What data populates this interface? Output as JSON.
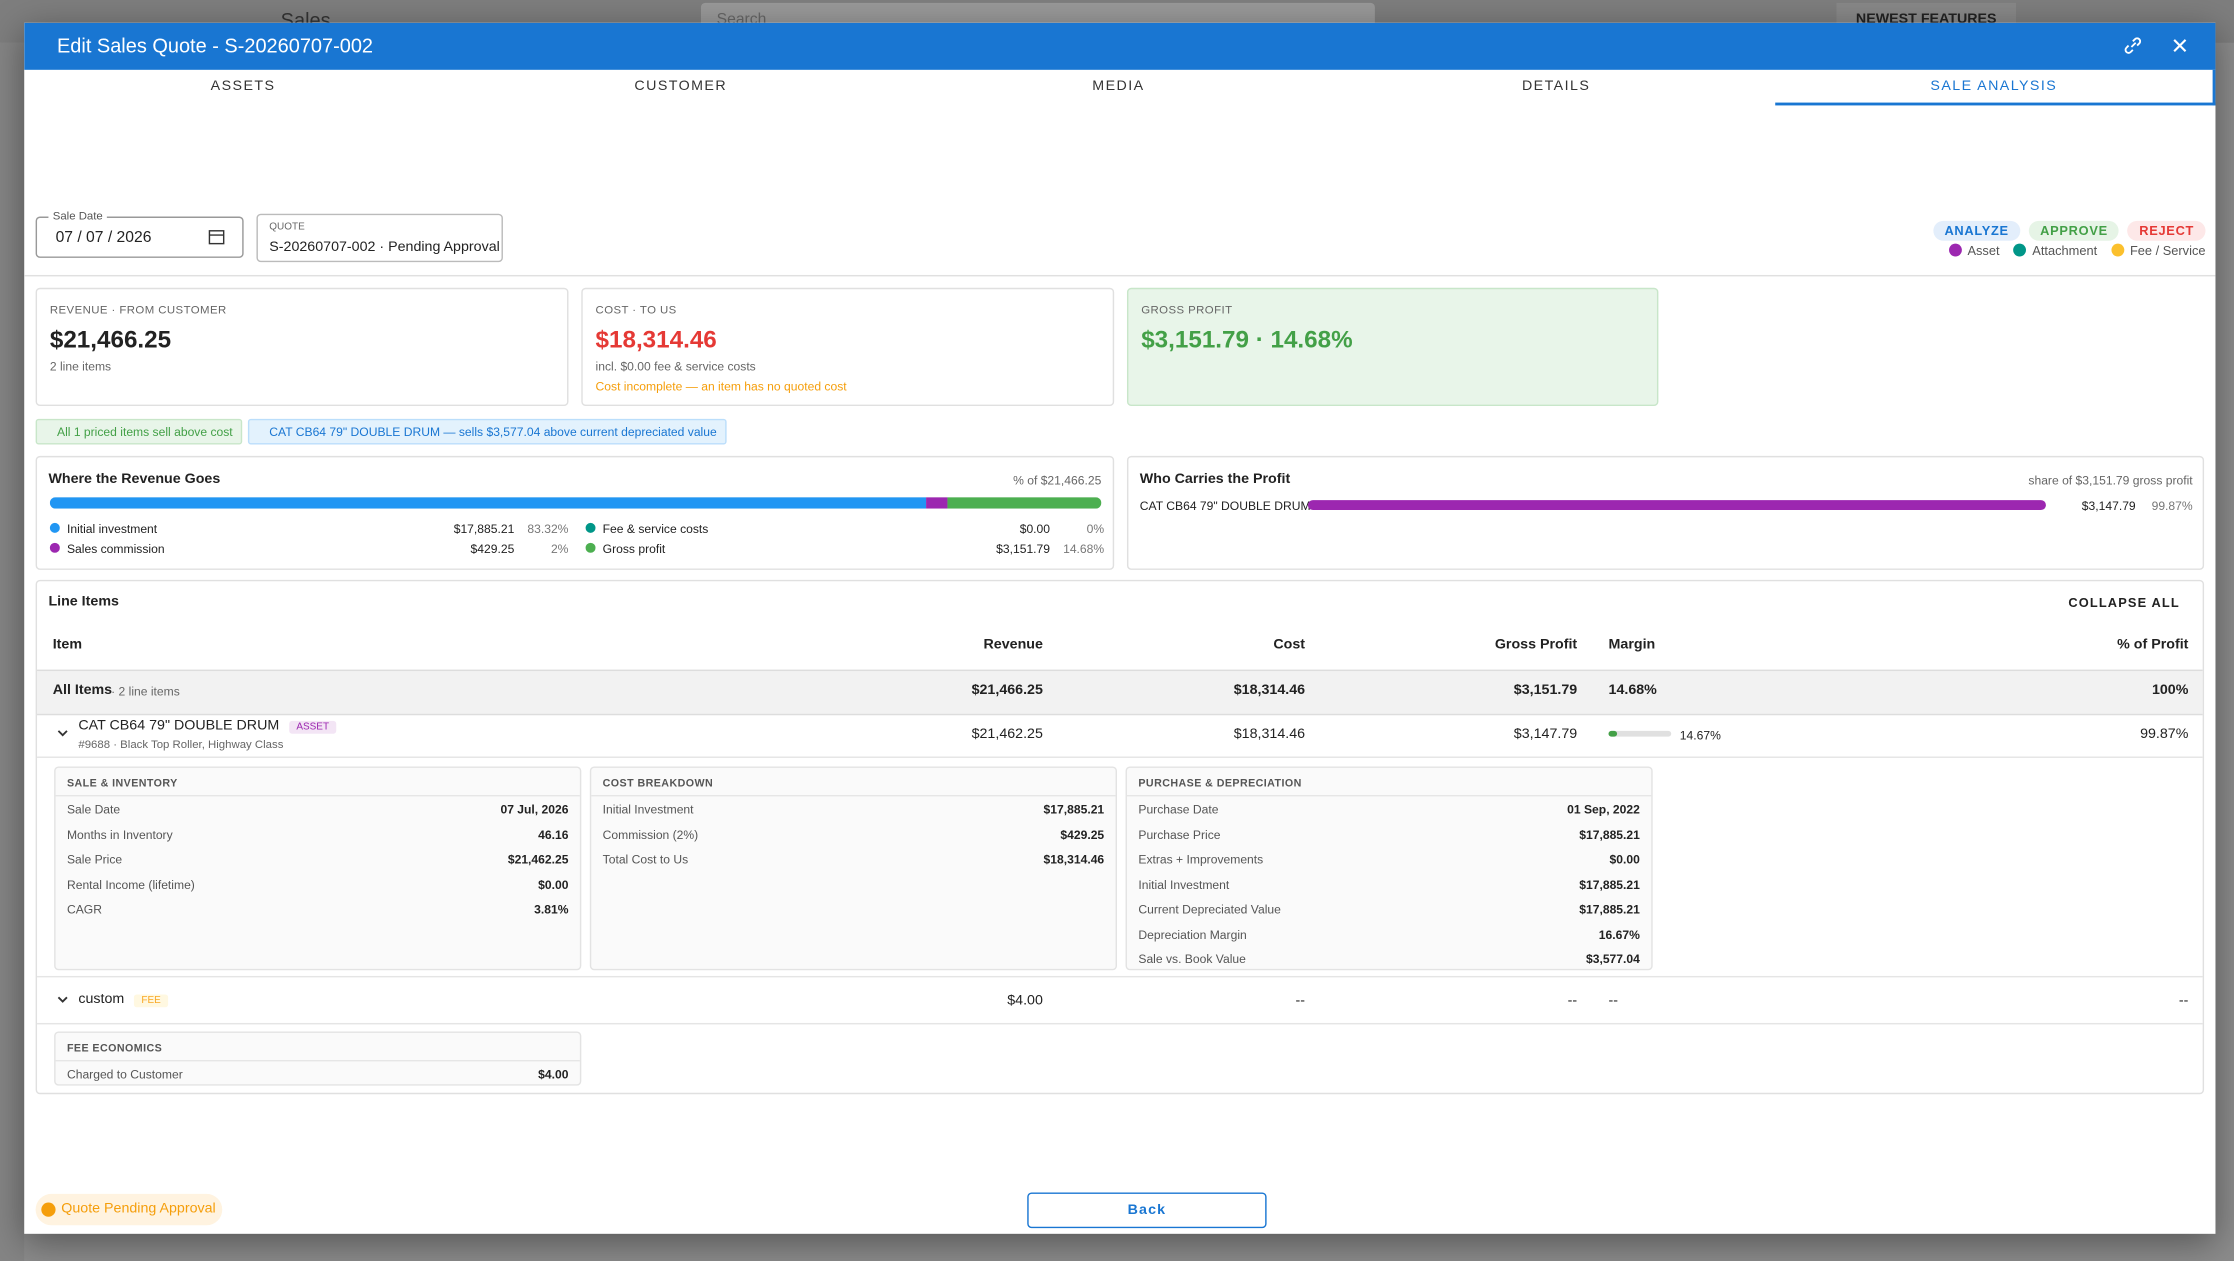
{
  "app": {
    "menu": "Sales",
    "search": "Search",
    "newest": "NEWEST FEATURES"
  },
  "dialog": {
    "title": "Edit Sales Quote - S-20260707-002"
  },
  "tabs": [
    "ASSETS",
    "CUSTOMER",
    "MEDIA",
    "DETAILS",
    "SALE ANALYSIS"
  ],
  "filters": {
    "sale_date_label": "Sale Date",
    "sale_date": "07 / 07 / 2026",
    "quote_label": "QUOTE",
    "quote": "S-20260707-002 · Pending Approval"
  },
  "actions": [
    "ANALYZE",
    "APPROVE",
    "REJECT"
  ],
  "legend": [
    "Asset",
    "Attachment",
    "Fee / Service"
  ],
  "kpis": [
    {
      "label": "REVENUE · FROM CUSTOMER",
      "value": "$21,466.25",
      "notes": [
        "2 line items"
      ]
    },
    {
      "label": "COST · TO US",
      "value": "$18,314.46",
      "notes": [
        "incl. $0.00 fee & service costs",
        "Cost incomplete — an item has no quoted cost"
      ]
    },
    {
      "label": "GROSS PROFIT",
      "value": "$3,151.79 · 14.68%",
      "notes": []
    }
  ],
  "badges": [
    "All 1 priced items sell above cost",
    "CAT CB64 79\" DOUBLE DRUM — sells $3,577.04 above current depreciated value"
  ],
  "revenue": {
    "title": "Where the Revenue Goes",
    "note": "% of $21,466.25",
    "items": [
      {
        "label": "Initial investment",
        "amount": "$17,885.21",
        "percent": 83.32,
        "percent_label": "83.32%",
        "color": "#2196f3"
      },
      {
        "label": "Sales commission",
        "amount": "$429.25",
        "percent": 2,
        "percent_label": "2%",
        "color": "#9c27b0"
      },
      {
        "label": "Fee & service costs",
        "amount": "$0.00",
        "percent": 0,
        "percent_label": "0%",
        "color": "#009688"
      },
      {
        "label": "Gross profit",
        "amount": "$3,151.79",
        "percent": 14.68,
        "percent_label": "14.68%",
        "color": "#4caf50"
      }
    ]
  },
  "profit": {
    "title": "Who Carries the Profit",
    "note": "share of $3,151.79 gross profit",
    "items": [
      {
        "name": "CAT CB64 79\" DOUBLE DRUM",
        "amount": "$3,147.79",
        "percent": 99.87,
        "percent_label": "99.87%",
        "color": "#9c27b0"
      }
    ]
  },
  "line_items": {
    "title": "Line Items",
    "collapse": "COLLAPSE ALL",
    "columns": [
      "Item",
      "Revenue",
      "Cost",
      "Gross Profit",
      "Margin",
      "% of Profit"
    ],
    "total": {
      "name": "All Items",
      "count": "· 2 line items",
      "revenue": "$21,466.25",
      "cost": "$18,314.46",
      "profit": "$3,151.79",
      "margin": "14.68%",
      "share": "100%"
    },
    "rows": [
      {
        "name": "CAT CB64 79\" DOUBLE DRUM",
        "tag": "ASSET",
        "sub": "#9688 · Black Top Roller, Highway Class",
        "revenue": "$21,462.25",
        "cost": "$18,314.46",
        "profit": "$3,147.79",
        "margin": 14.67,
        "margin_label": "14.67%",
        "share": "99.87%",
        "panels": [
          {
            "title": "SALE & INVENTORY",
            "rows": [
              [
                "Sale Date",
                "07 Jul, 2026"
              ],
              [
                "Months in Inventory",
                "46.16"
              ],
              [
                "Sale Price",
                "$21,462.25"
              ],
              [
                "Rental Income (lifetime)",
                "$0.00"
              ],
              [
                "CAGR",
                "3.81%"
              ]
            ]
          },
          {
            "title": "COST BREAKDOWN",
            "rows": [
              [
                "Initial Investment",
                "$17,885.21"
              ],
              [
                "Commission (2%)",
                "$429.25"
              ],
              [
                "Total Cost to Us",
                "$18,314.46"
              ]
            ]
          },
          {
            "title": "PURCHASE & DEPRECIATION",
            "rows": [
              [
                "Purchase Date",
                "01 Sep, 2022"
              ],
              [
                "Purchase Price",
                "$17,885.21"
              ],
              [
                "Extras + Improvements",
                "$0.00"
              ],
              [
                "Initial Investment",
                "$17,885.21"
              ],
              [
                "Current Depreciated Value",
                "$17,885.21"
              ],
              [
                "Depreciation Margin",
                "16.67%"
              ],
              [
                "Sale vs. Book Value",
                "$3,577.04"
              ]
            ]
          }
        ]
      },
      {
        "name": "custom",
        "tag": "FEE",
        "revenue": "$4.00",
        "cost": "--",
        "profit": "--",
        "margin_label": "--",
        "share": "--",
        "panels": [
          {
            "title": "FEE ECONOMICS",
            "rows": [
              [
                "Charged to Customer",
                "$4.00"
              ]
            ]
          }
        ]
      }
    ]
  },
  "footer": {
    "status": "Quote Pending Approval",
    "back": "Back"
  }
}
